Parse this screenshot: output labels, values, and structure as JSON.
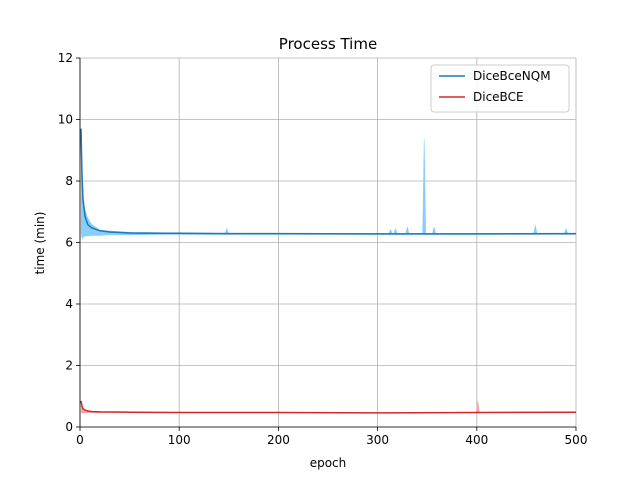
{
  "chart_data": {
    "type": "line",
    "title": "Process Time",
    "xlabel": "epoch",
    "ylabel": "time (min)",
    "xlim": [
      0,
      500
    ],
    "ylim": [
      0,
      12
    ],
    "xticks": [
      0,
      100,
      200,
      300,
      400,
      500
    ],
    "yticks": [
      0,
      2,
      4,
      6,
      8,
      10,
      12
    ],
    "grid": true,
    "legend_position": "top-right",
    "series": [
      {
        "name": "DiceBceNQM",
        "line_color": "#1f77b4",
        "band_color": "#87cefa",
        "x": [
          1,
          2,
          3,
          5,
          8,
          12,
          20,
          30,
          50,
          80,
          100,
          150,
          200,
          300,
          400,
          500
        ],
        "values": [
          9.7,
          8.2,
          7.4,
          6.85,
          6.58,
          6.47,
          6.38,
          6.34,
          6.31,
          6.3,
          6.3,
          6.29,
          6.29,
          6.28,
          6.28,
          6.29
        ],
        "band_upper": [
          9.7,
          8.4,
          7.6,
          7.1,
          6.8,
          6.6,
          6.42,
          6.38,
          6.34,
          6.33,
          6.32,
          6.3,
          6.3,
          6.3,
          6.3,
          6.31
        ],
        "band_lower": [
          6.3,
          6.1,
          6.15,
          6.2,
          6.2,
          6.22,
          6.22,
          6.24,
          6.24,
          6.25,
          6.25,
          6.25,
          6.25,
          6.25,
          6.25,
          6.25
        ],
        "spikes": [
          {
            "x": 148,
            "value": 6.45
          },
          {
            "x": 313,
            "value": 6.42
          },
          {
            "x": 318,
            "value": 6.45
          },
          {
            "x": 330,
            "value": 6.5
          },
          {
            "x": 347,
            "value": 9.35
          },
          {
            "x": 357,
            "value": 6.5
          },
          {
            "x": 459,
            "value": 6.55
          },
          {
            "x": 490,
            "value": 6.45
          }
        ]
      },
      {
        "name": "DiceBCE",
        "line_color": "#d62728",
        "band_color": "#f4a6a6",
        "x": [
          1,
          2,
          3,
          5,
          8,
          12,
          20,
          50,
          100,
          200,
          300,
          400,
          500
        ],
        "values": [
          0.85,
          0.68,
          0.6,
          0.55,
          0.52,
          0.5,
          0.49,
          0.48,
          0.47,
          0.47,
          0.46,
          0.47,
          0.48
        ],
        "band_upper": [
          0.85,
          0.72,
          0.62,
          0.56,
          0.53,
          0.51,
          0.5,
          0.49,
          0.48,
          0.48,
          0.47,
          0.48,
          0.49
        ],
        "band_lower": [
          0.45,
          0.45,
          0.45,
          0.45,
          0.46,
          0.46,
          0.46,
          0.46,
          0.46,
          0.46,
          0.45,
          0.46,
          0.47
        ],
        "spikes": [
          {
            "x": 401,
            "value": 0.85
          }
        ]
      }
    ]
  }
}
